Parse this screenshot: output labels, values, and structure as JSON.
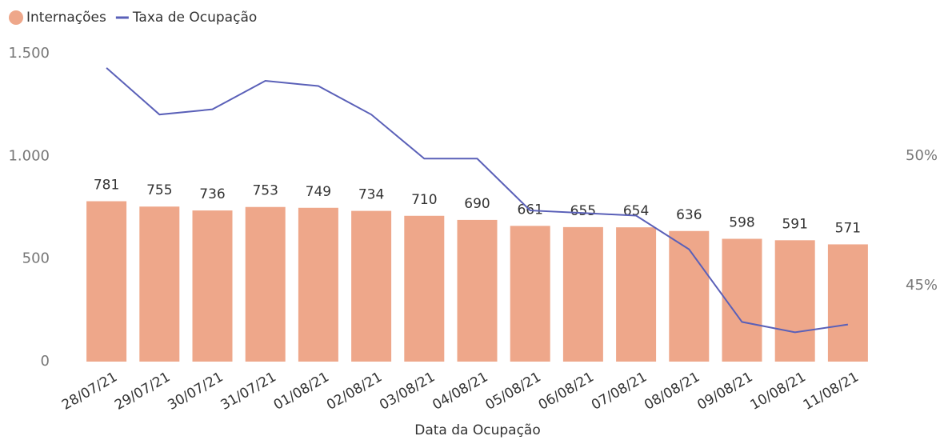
{
  "chart_data": {
    "type": "combo",
    "x_label": "Data da Ocupação",
    "categories": [
      "28/07/21",
      "29/07/21",
      "30/07/21",
      "31/07/21",
      "01/08/21",
      "02/08/21",
      "03/08/21",
      "04/08/21",
      "05/08/21",
      "06/08/21",
      "07/08/21",
      "08/08/21",
      "09/08/21",
      "10/08/21",
      "11/08/21"
    ],
    "series": [
      {
        "name": "Internações",
        "type": "bar",
        "color": "#eea78a",
        "values": [
          781,
          755,
          736,
          753,
          749,
          734,
          710,
          690,
          661,
          655,
          654,
          636,
          598,
          591,
          571
        ]
      },
      {
        "name": "Taxa de Ocupação",
        "type": "line",
        "axis": "y2",
        "color": "#5a60b8",
        "values": [
          53.4,
          51.6,
          51.8,
          52.9,
          52.7,
          51.6,
          49.9,
          49.9,
          47.9,
          47.8,
          47.7,
          46.4,
          43.6,
          43.2,
          43.5
        ]
      }
    ],
    "ylim": [
      0,
      1500
    ],
    "yticks": [
      0,
      500,
      {
        "value": 1000,
        "label": "1.000"
      },
      {
        "value": 1500,
        "label": "1.500"
      }
    ],
    "y2lim": [
      42.07,
      53.95
    ],
    "y2ticks": [
      {
        "value": 45,
        "label": "45%"
      },
      {
        "value": 50,
        "label": "50%"
      }
    ],
    "legend": "top-left"
  }
}
